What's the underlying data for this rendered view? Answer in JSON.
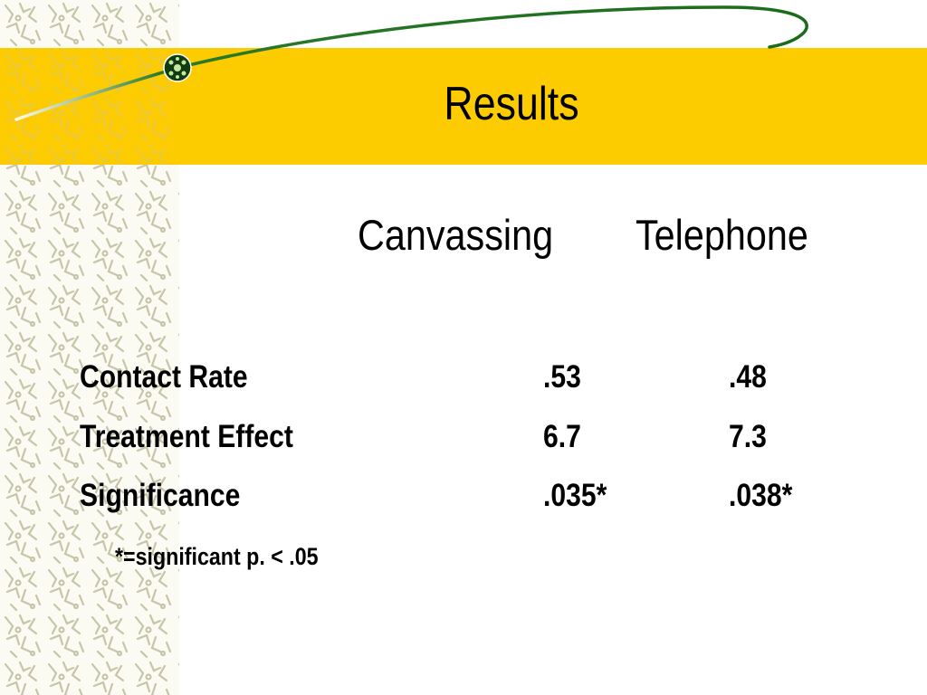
{
  "slide": {
    "title": "Results",
    "columns": [
      "Canvassing",
      "Telephone"
    ],
    "rows": [
      {
        "label": "Contact Rate",
        "canvassing": ".53",
        "telephone": ".48"
      },
      {
        "label": "Treatment Effect",
        "canvassing": "6.7",
        "telephone": "7.3"
      },
      {
        "label": "Significance",
        "canvassing": ".035*",
        "telephone": ".038*"
      }
    ],
    "footnote": "*=significant p. < .05"
  },
  "theme": {
    "band_color": "#fccb00",
    "swoosh_color": "#1a6b1a",
    "pattern_color": "#c8c4a8"
  }
}
